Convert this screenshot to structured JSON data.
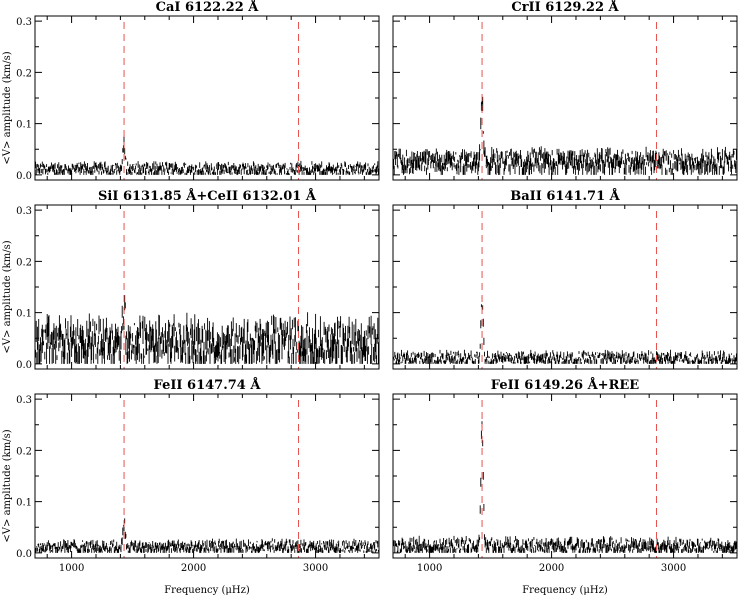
{
  "chart_data": {
    "type": "line",
    "xlabel": "Frequency (μHz)",
    "ylabel": "<V> amplitude (km/s)",
    "xlim": [
      700,
      3520
    ],
    "ylim": [
      -0.01,
      0.31
    ],
    "xticks": [
      "1000",
      "2000",
      "3000"
    ],
    "yticks": [
      "0.0",
      "0.1",
      "0.2",
      "0.3"
    ],
    "reference_lines": {
      "x": [
        1430,
        2860
      ],
      "color": "#e8534f",
      "style": "dashed"
    },
    "panels": [
      {
        "title": "CaI 6122.22 Å",
        "noise": 0.012,
        "spread": 0.01,
        "peak": 0.05
      },
      {
        "title": "CrII 6129.22 Å",
        "noise": 0.028,
        "spread": 0.018,
        "peak": 0.125
      },
      {
        "title": "SiI 6131.85 Å+CeII 6132.01 Å",
        "noise": 0.045,
        "spread": 0.035,
        "peak": 0.07
      },
      {
        "title": "BaII 6141.71 Å",
        "noise": 0.012,
        "spread": 0.01,
        "peak": 0.125
      },
      {
        "title": "FeII 6147.74 Å",
        "noise": 0.013,
        "spread": 0.01,
        "peak": 0.05
      },
      {
        "title": "FeII 6149.26 Å+REE",
        "noise": 0.015,
        "spread": 0.012,
        "peak": 0.24
      }
    ]
  }
}
